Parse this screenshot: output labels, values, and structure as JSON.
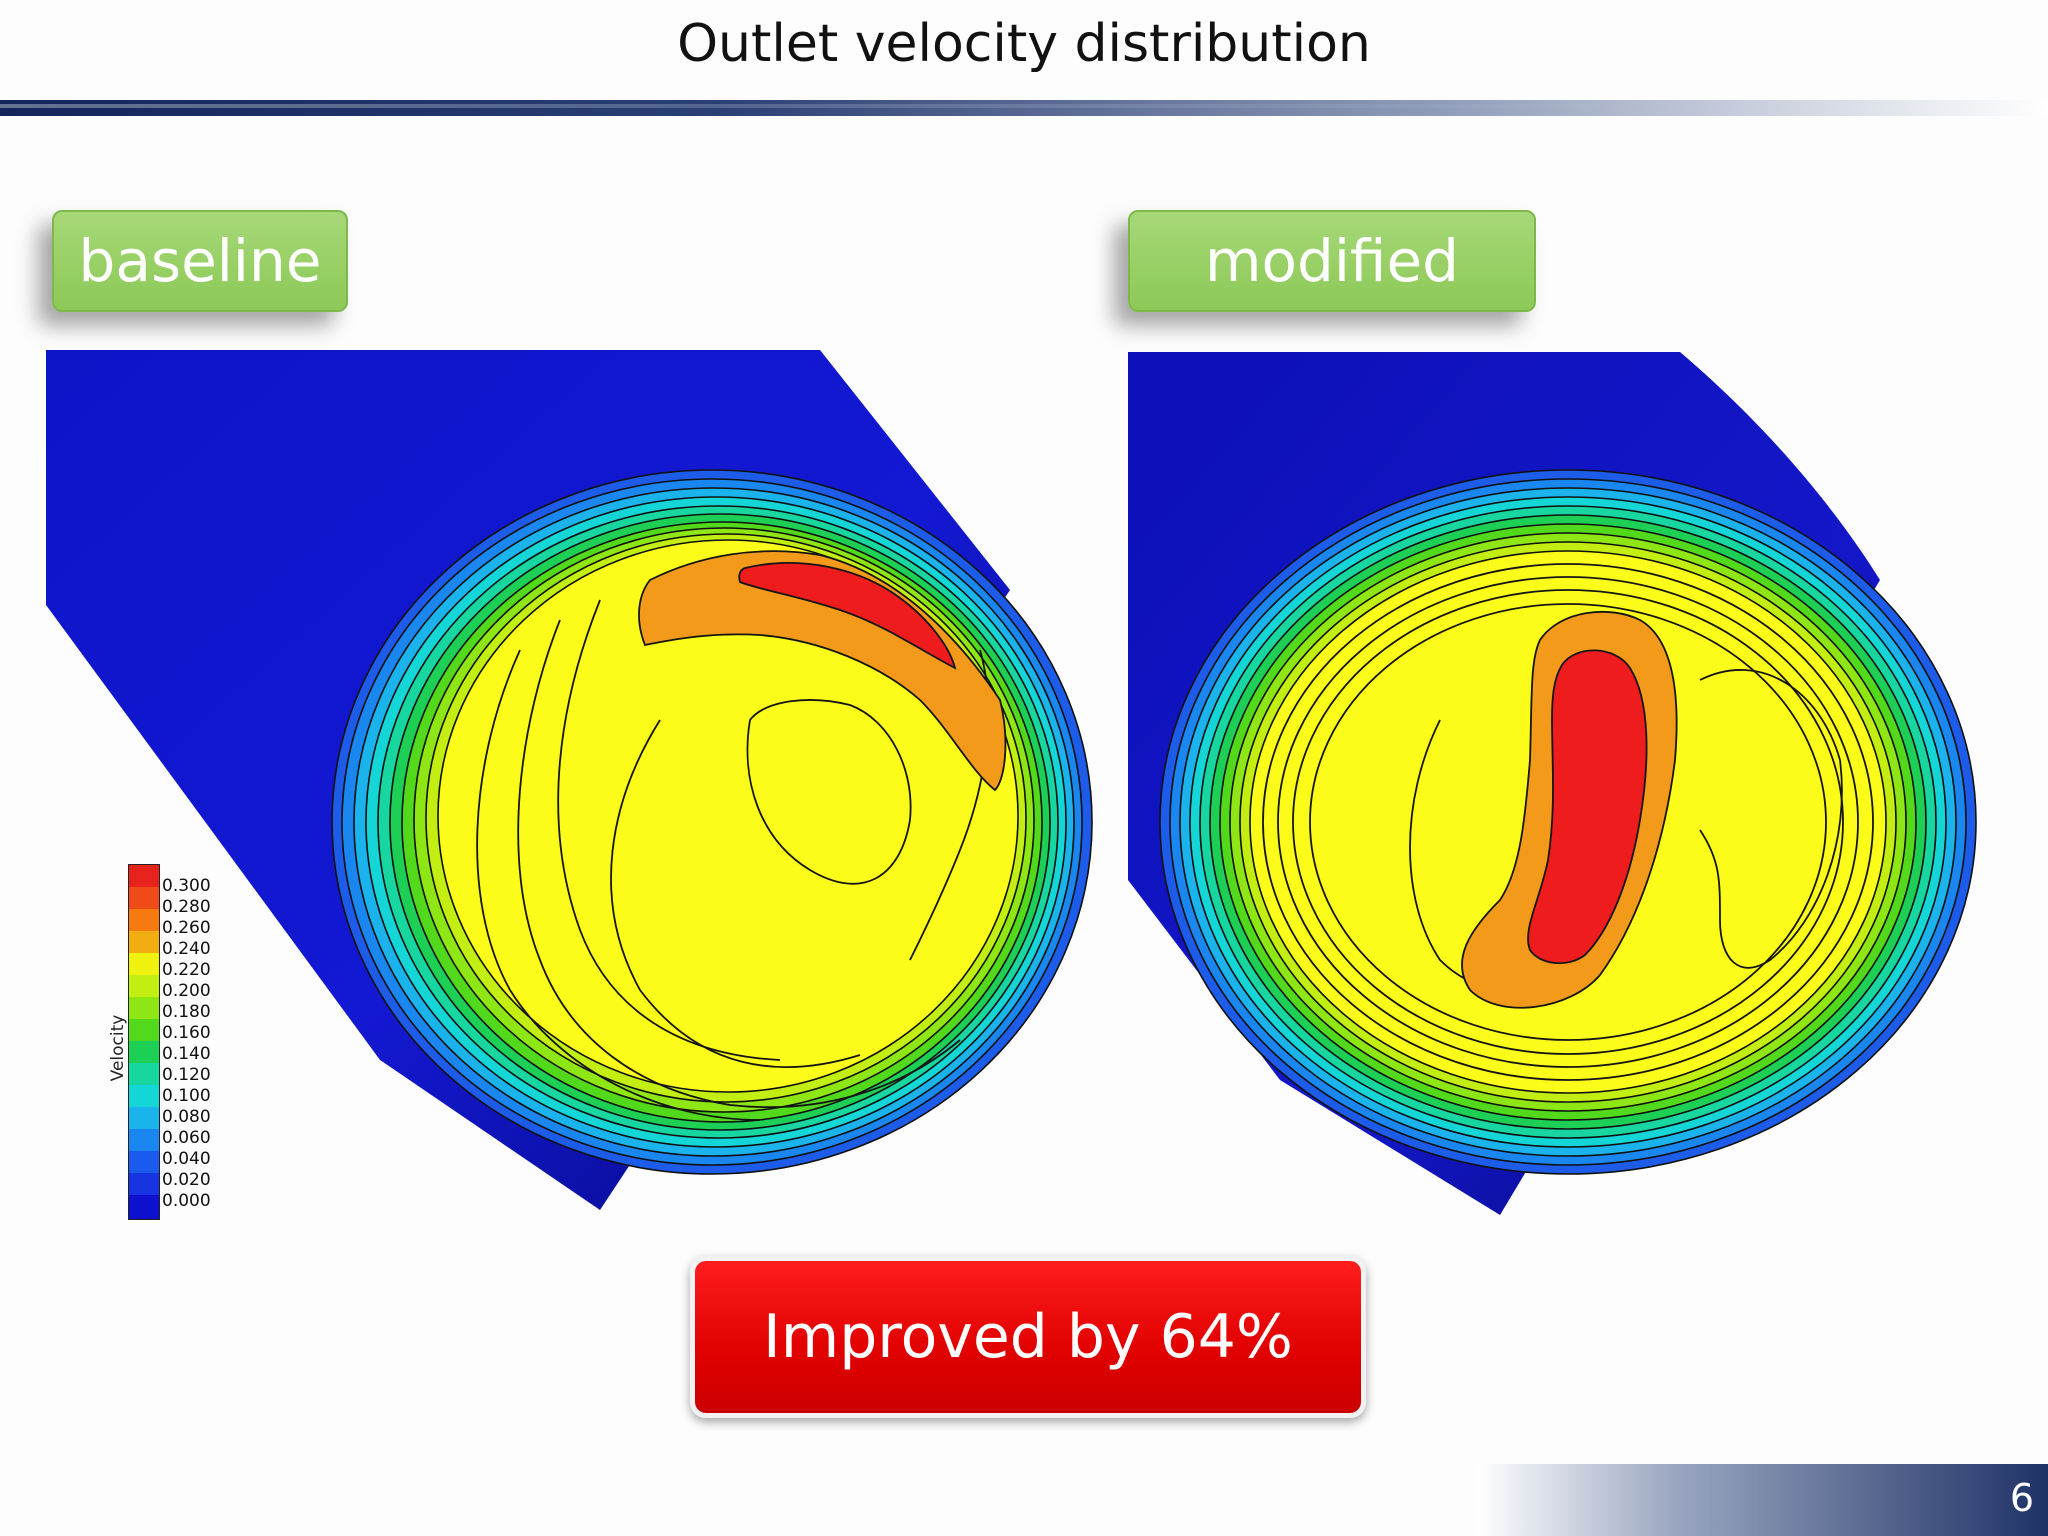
{
  "slide": {
    "title": "Outlet velocity distribution",
    "page_number": "6"
  },
  "panels": {
    "left_label": "baseline",
    "right_label": "modified"
  },
  "legend": {
    "title": "Velocity",
    "ticks": [
      "0.300",
      "0.280",
      "0.260",
      "0.240",
      "0.220",
      "0.200",
      "0.180",
      "0.160",
      "0.140",
      "0.120",
      "0.100",
      "0.080",
      "0.060",
      "0.040",
      "0.020",
      "0.000"
    ],
    "colors": [
      "#e8231d",
      "#f04a18",
      "#f57a10",
      "#f2ad10",
      "#eef20e",
      "#c3ee12",
      "#8fe615",
      "#52d91b",
      "#1ecf55",
      "#17d6a0",
      "#15d6d6",
      "#1ab3ec",
      "#1a86ef",
      "#1a5aee",
      "#1734e0",
      "#0d10cc"
    ]
  },
  "callout": {
    "text": "Improved by 64%"
  },
  "colors": {
    "contour_yellow": "#fcfc1a",
    "contour_orange": "#f39a1b",
    "contour_red": "#ee1c1c",
    "pipe_blue": "#1717d2",
    "tag_green": "#93cf5d",
    "callout_red": "#ee0000",
    "header_navy": "#13265a"
  }
}
